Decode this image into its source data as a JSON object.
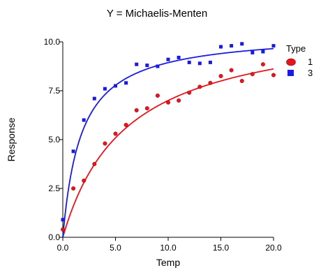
{
  "chart_data": {
    "type": "scatter",
    "title": "Y = Michaelis-Menten",
    "xlabel": "Temp",
    "ylabel": "Response",
    "xlim": [
      0,
      20
    ],
    "ylim": [
      0,
      10
    ],
    "x_ticks": [
      "0.0",
      "5.0",
      "10.0",
      "15.0",
      "20.0"
    ],
    "y_ticks": [
      "0.0",
      "2.5",
      "5.0",
      "7.5",
      "10.0"
    ],
    "grid": false,
    "legend": {
      "title": "Type",
      "placement": "right"
    },
    "series": [
      {
        "name": "1",
        "marker": "circle",
        "color": "#e8141c",
        "x": [
          0,
          1,
          2,
          3,
          4,
          5,
          6,
          7,
          8,
          9,
          10,
          11,
          12,
          13,
          14,
          15,
          16,
          17,
          18,
          19,
          20
        ],
        "y": [
          0.4,
          2.5,
          2.9,
          3.75,
          4.8,
          5.3,
          5.75,
          6.5,
          6.6,
          7.25,
          6.9,
          7.0,
          7.4,
          7.7,
          7.9,
          8.25,
          8.55,
          8.0,
          8.35,
          8.85,
          8.3
        ],
        "fit": {
          "vmax": 11.2,
          "km": 6.0
        }
      },
      {
        "name": "3",
        "marker": "square",
        "color": "#1a1ae0",
        "x": [
          0,
          1,
          2,
          3,
          4,
          5,
          6,
          7,
          8,
          9,
          10,
          11,
          12,
          13,
          14,
          15,
          16,
          17,
          18,
          19,
          20
        ],
        "y": [
          0.9,
          4.4,
          6.0,
          7.1,
          7.6,
          7.75,
          7.9,
          8.85,
          8.8,
          8.75,
          9.1,
          9.2,
          8.95,
          8.9,
          8.95,
          9.75,
          9.8,
          9.9,
          9.45,
          9.5,
          9.8
        ],
        "fit": {
          "vmax": 10.5,
          "km": 1.75
        }
      }
    ]
  }
}
